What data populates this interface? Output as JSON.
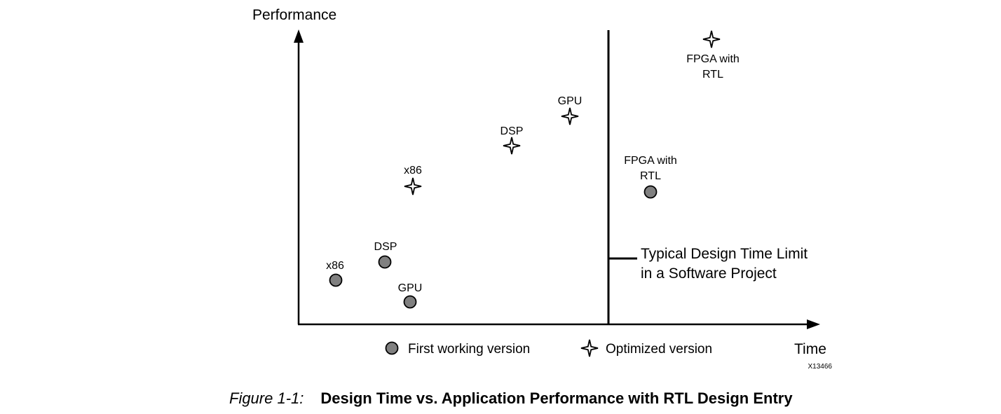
{
  "axes": {
    "y_label": "Performance",
    "x_label": "Time"
  },
  "first_working_points": [
    {
      "id": "fw-x86",
      "label": "x86"
    },
    {
      "id": "fw-dsp",
      "label": "DSP"
    },
    {
      "id": "fw-gpu",
      "label": "GPU"
    },
    {
      "id": "fw-fpga",
      "label": "FPGA with\nRTL"
    }
  ],
  "optimized_points": [
    {
      "id": "opt-x86",
      "label": "x86"
    },
    {
      "id": "opt-dsp",
      "label": "DSP"
    },
    {
      "id": "opt-gpu",
      "label": "GPU"
    },
    {
      "id": "opt-fpga",
      "label": "FPGA with\nRTL"
    }
  ],
  "design_limit": {
    "line1": "Typical Design Time Limit",
    "line2": "in a Software Project"
  },
  "legend": {
    "first_working": "First working version",
    "optimized": "Optimized version"
  },
  "figure_id": "X13466",
  "caption": {
    "number": "Figure 1-1:",
    "title": "Design Time vs. Application Performance with RTL Design Entry"
  },
  "colors": {
    "marker_fill": "#808080",
    "stroke": "#000000",
    "background": "#ffffff"
  }
}
